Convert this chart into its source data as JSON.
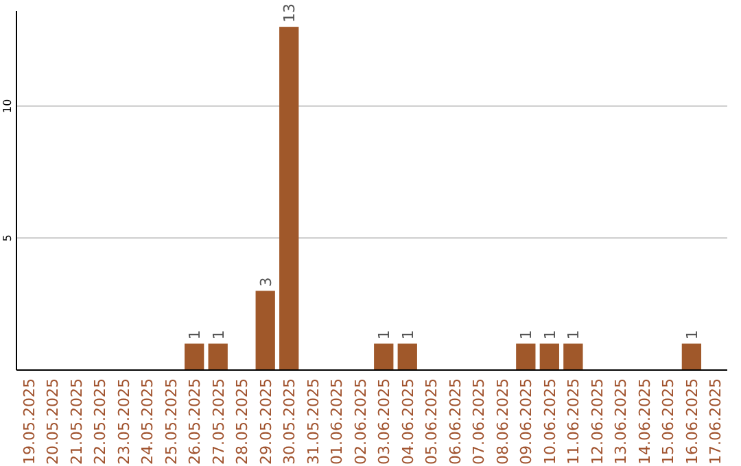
{
  "chart_data": {
    "type": "bar",
    "categories": [
      "19.05.2025",
      "20.05.2025",
      "21.05.2025",
      "22.05.2025",
      "23.05.2025",
      "24.05.2025",
      "25.05.2025",
      "26.05.2025",
      "27.05.2025",
      "28.05.2025",
      "29.05.2025",
      "30.05.2025",
      "31.05.2025",
      "01.06.2025",
      "02.06.2025",
      "03.06.2025",
      "04.06.2025",
      "05.06.2025",
      "06.06.2025",
      "07.06.2025",
      "08.06.2025",
      "09.06.2025",
      "10.06.2025",
      "11.06.2025",
      "12.06.2025",
      "13.06.2025",
      "14.06.2025",
      "15.06.2025",
      "16.06.2025",
      "17.06.2025"
    ],
    "values": [
      0,
      0,
      0,
      0,
      0,
      0,
      0,
      1,
      1,
      0,
      3,
      13,
      0,
      0,
      0,
      1,
      1,
      0,
      0,
      0,
      0,
      1,
      1,
      1,
      0,
      0,
      0,
      0,
      1,
      0
    ],
    "value_labels": [
      null,
      null,
      null,
      null,
      null,
      null,
      null,
      "1",
      "1",
      null,
      "3",
      "13",
      null,
      null,
      null,
      "1",
      "1",
      null,
      null,
      null,
      null,
      "1",
      "1",
      "1",
      null,
      null,
      null,
      null,
      "1",
      null
    ],
    "color": "#a0582a",
    "ylim": [
      0,
      13.6
    ],
    "yticks": [
      5,
      10
    ],
    "grid": "y"
  }
}
